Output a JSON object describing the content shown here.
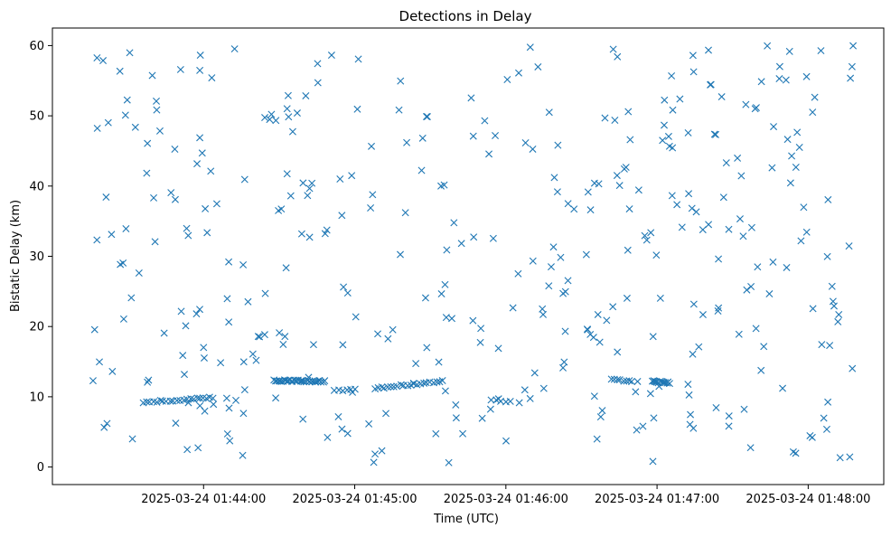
{
  "chart_data": {
    "type": "scatter",
    "title": "Detections in Delay",
    "xlabel": "Time (UTC)",
    "ylabel": "Bistatic Delay (km)",
    "x_ticks": [
      "2025-03-24 01:44:00",
      "2025-03-24 01:45:00",
      "2025-03-24 01:46:00",
      "2025-03-24 01:47:00",
      "2025-03-24 01:48:00"
    ],
    "x_tick_seconds": [
      0,
      60,
      120,
      180,
      240
    ],
    "y_ticks": [
      0,
      10,
      20,
      30,
      40,
      50,
      60
    ],
    "xlim_seconds": [
      -60,
      270
    ],
    "ylim": [
      -2.5,
      62.5
    ],
    "marker": "x",
    "color": "#1f77b4",
    "grid": false,
    "random_clutter": {
      "count": 380,
      "t_range_seconds": [
        -45,
        258
      ],
      "delay_range_km": [
        0.5,
        60
      ]
    },
    "tracks": [
      {
        "t_start": -24,
        "t_end": 4,
        "d_start": 9.2,
        "d_end": 9.9,
        "count": 22
      },
      {
        "t_start": 28,
        "t_end": 48,
        "d_start": 12.3,
        "d_end": 12.2,
        "count": 36
      },
      {
        "t_start": 52,
        "t_end": 60,
        "d_start": 10.8,
        "d_end": 11.2,
        "count": 6
      },
      {
        "t_start": 68,
        "t_end": 95,
        "d_start": 11.2,
        "d_end": 12.2,
        "count": 22
      },
      {
        "t_start": 114,
        "t_end": 122,
        "d_start": 9.5,
        "d_end": 9.3,
        "count": 5
      },
      {
        "t_start": 162,
        "t_end": 170,
        "d_start": 12.4,
        "d_end": 12.2,
        "count": 8
      },
      {
        "t_start": 178,
        "t_end": 185,
        "d_start": 12.2,
        "d_end": 12.0,
        "count": 14
      }
    ]
  }
}
